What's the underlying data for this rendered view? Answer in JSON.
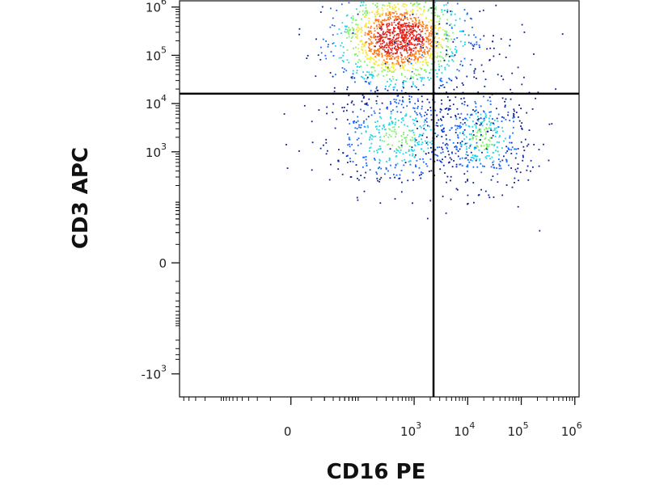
{
  "chart_data": {
    "type": "scatter",
    "title": "",
    "xlabel": "CD16 PE",
    "ylabel": "CD3 APC",
    "x_scale": "biexponential",
    "y_scale": "biexponential",
    "xlim": [
      -600,
      1200000
    ],
    "ylim": [
      -3000,
      1400000
    ],
    "x_ticks": [
      {
        "value": 0,
        "base": "0",
        "exp": ""
      },
      {
        "value": 1000,
        "base": "10",
        "exp": "3"
      },
      {
        "value": 10000,
        "base": "10",
        "exp": "4"
      },
      {
        "value": 100000,
        "base": "10",
        "exp": "5"
      },
      {
        "value": 1000000,
        "base": "10",
        "exp": "6"
      }
    ],
    "y_ticks": [
      {
        "value": -1000,
        "base": "-10",
        "exp": "3"
      },
      {
        "value": 0,
        "base": "0",
        "exp": ""
      },
      {
        "value": 1000,
        "base": "10",
        "exp": "3"
      },
      {
        "value": 10000,
        "base": "10",
        "exp": "4"
      },
      {
        "value": 100000,
        "base": "10",
        "exp": "5"
      },
      {
        "value": 1000000,
        "base": "10",
        "exp": "6"
      }
    ],
    "gates": {
      "x": 2300,
      "y": 16000
    },
    "grid": false,
    "legend": "none",
    "colormap": [
      "#0a1f8f",
      "#1565ff",
      "#22d3e6",
      "#7cf06a",
      "#f5e83a",
      "#ff7a1a",
      "#e0241a"
    ],
    "populations": [
      {
        "x": 520,
        "y": 240000,
        "sx": 0.17,
        "sy": 0.13,
        "n": 1500
      },
      {
        "x": 480,
        "y": 2000,
        "sx": 0.2,
        "sy": 0.14,
        "n": 520
      },
      {
        "x": 19000,
        "y": 2000,
        "sx": 0.13,
        "sy": 0.14,
        "n": 380
      },
      {
        "x": 8000,
        "y": 2000,
        "sx": 0.22,
        "sy": 0.12,
        "n": 70
      },
      {
        "x": 5000,
        "y": 260000,
        "sx": 0.3,
        "sy": 0.1,
        "n": 60
      },
      {
        "x": 25000,
        "y": 7000,
        "sx": 0.12,
        "sy": 0.2,
        "n": 35
      },
      {
        "x": 800,
        "y": 20000,
        "sx": 0.3,
        "sy": 0.3,
        "n": 25
      }
    ]
  }
}
